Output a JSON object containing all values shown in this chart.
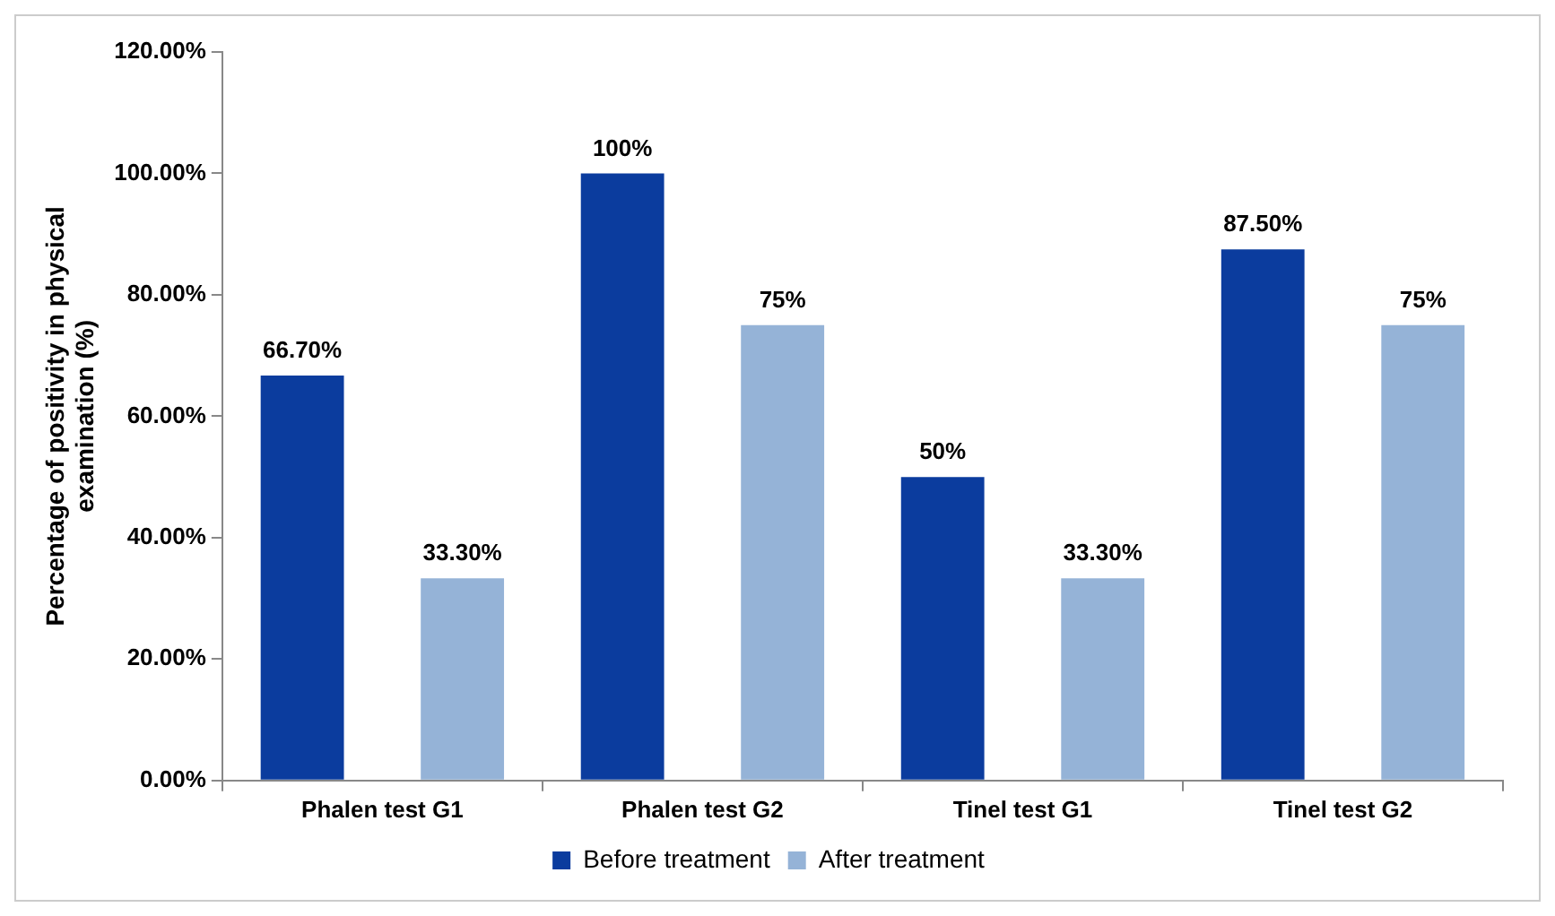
{
  "chart_data": {
    "type": "bar",
    "ylabel": "Percentage of positivity in physical examination (%)",
    "categories": [
      "Phalen test G1",
      "Phalen test G2",
      "Tinel test G1",
      "Tinel test G2"
    ],
    "series": [
      {
        "name": "Before treatment",
        "color": "#0b3c9e",
        "values": [
          66.7,
          100,
          50,
          87.5
        ],
        "value_labels": [
          "66.70%",
          "100%",
          "50%",
          "87.50%"
        ]
      },
      {
        "name": "After treatment",
        "color": "#95b3d7",
        "values": [
          33.3,
          75,
          33.3,
          75
        ],
        "value_labels": [
          "33.30%",
          "75%",
          "33.30%",
          "75%"
        ]
      }
    ],
    "ylim": [
      0,
      120
    ],
    "yticks": [
      {
        "value": 0,
        "label": "0.00%"
      },
      {
        "value": 20,
        "label": "20.00%"
      },
      {
        "value": 40,
        "label": "40.00%"
      },
      {
        "value": 60,
        "label": "60.00%"
      },
      {
        "value": 80,
        "label": "80.00%"
      },
      {
        "value": 100,
        "label": "100.00%"
      },
      {
        "value": 120,
        "label": "120.00%"
      }
    ],
    "grid": false,
    "legend": "bottom"
  }
}
